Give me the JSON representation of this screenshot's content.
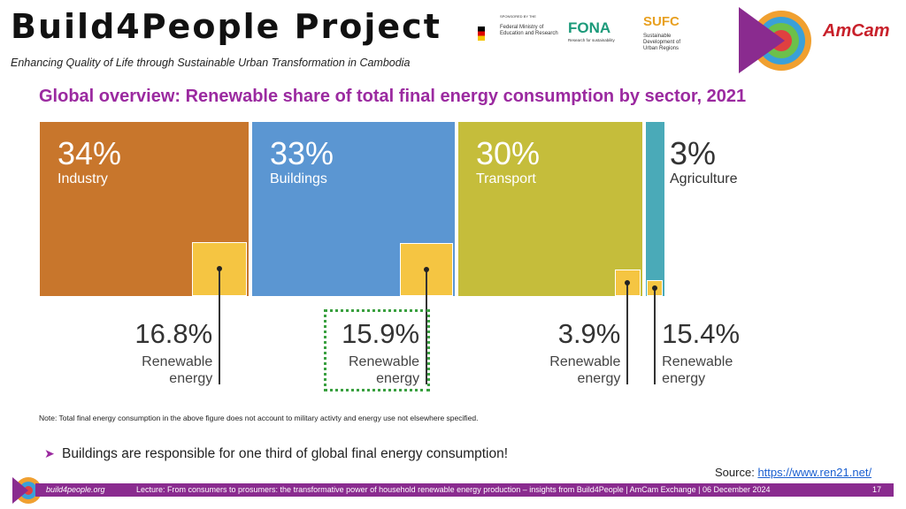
{
  "header": {
    "title": "Build4People Project",
    "subtitle": "Enhancing Quality of Life through Sustainable Urban Transformation in Cambodia"
  },
  "logos": {
    "sponsor_caption": "SPONSORED BY THE",
    "ministry": "Federal Ministry of Education and Research",
    "fona": "FONA",
    "fona_caption": "Research for sustainability",
    "sufc": "SUFC",
    "sufc_caption": "Sustainable Development of Urban Regions",
    "amcam": "AmCam"
  },
  "chart_data": {
    "type": "treemap",
    "title": "Global overview: Renewable share of total final energy consumption by sector, 2021",
    "categories": [
      "Industry",
      "Buildings",
      "Transport",
      "Agriculture"
    ],
    "values": [
      34,
      33,
      30,
      3
    ],
    "value_labels": [
      "34%",
      "33%",
      "30%",
      "3%"
    ],
    "colors": [
      "#c8762c",
      "#5b96d2",
      "#c5bd3b",
      "#4aaab8"
    ],
    "renewable": {
      "name": "Renewable energy",
      "values": [
        16.8,
        15.9,
        3.9,
        15.4
      ],
      "value_labels": [
        "16.8%",
        "15.9%",
        "3.9%",
        "15.4%"
      ],
      "color": "#f5c542"
    },
    "note": "Note: Total final energy consumption in the above figure does not account to military activty and energy use not elsewhere specified."
  },
  "body": {
    "bullet": "Buildings are responsible for one third of global final energy consumption!",
    "source_label": "Source:",
    "source_url": "https://www.ren21.net/"
  },
  "footer": {
    "site": "build4people.org",
    "lecture": "Lecture: From consumers to prosumers: the transformative power of household renewable energy production – insights from Build4People | AmCam Exchange | 06 December 2024",
    "page": "17"
  }
}
